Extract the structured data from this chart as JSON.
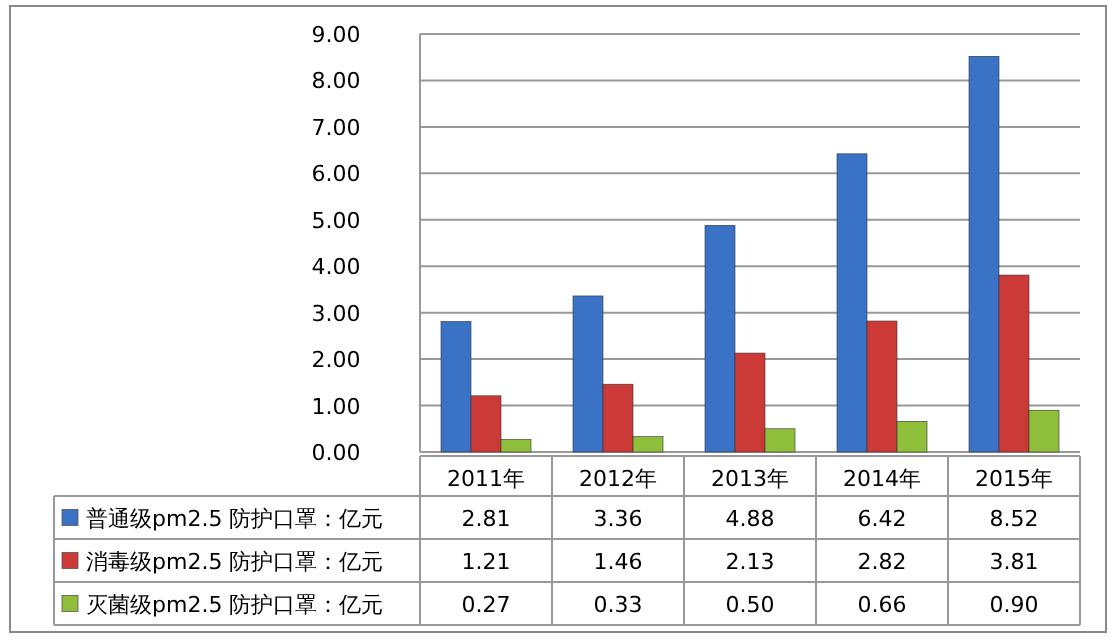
{
  "chart_data": {
    "type": "bar",
    "categories": [
      "2011年",
      "2012年",
      "2013年",
      "2014年",
      "2015年"
    ],
    "series": [
      {
        "name": "普通级pm2.5 防护口罩：亿元",
        "color": "#3a73c6",
        "values": [
          2.81,
          3.36,
          4.88,
          6.42,
          8.52
        ],
        "value_labels": [
          "2.81",
          "3.36",
          "4.88",
          "6.42",
          "8.52"
        ]
      },
      {
        "name": "消毒级pm2.5 防护口罩：亿元",
        "color": "#cc3a38",
        "values": [
          1.21,
          1.46,
          2.13,
          2.82,
          3.81
        ],
        "value_labels": [
          "1.21",
          "1.46",
          "2.13",
          "2.82",
          "3.81"
        ]
      },
      {
        "name": "灭菌级pm2.5 防护口罩：亿元",
        "color": "#8fbf3a",
        "values": [
          0.27,
          0.33,
          0.5,
          0.66,
          0.9
        ],
        "value_labels": [
          "0.27",
          "0.33",
          "0.50",
          "0.66",
          "0.90"
        ]
      }
    ],
    "ylim": [
      0,
      9
    ],
    "yticks": [
      {
        "value": 0,
        "label": "0.00"
      },
      {
        "value": 1,
        "label": "1.00"
      },
      {
        "value": 2,
        "label": "2.00"
      },
      {
        "value": 3,
        "label": "3.00"
      },
      {
        "value": 4,
        "label": "4.00"
      },
      {
        "value": 5,
        "label": "5.00"
      },
      {
        "value": 6,
        "label": "6.00"
      },
      {
        "value": 7,
        "label": "7.00"
      },
      {
        "value": 8,
        "label": "8.00"
      },
      {
        "value": 9,
        "label": "9.00"
      }
    ],
    "grid": "y",
    "legend": "bottom"
  }
}
